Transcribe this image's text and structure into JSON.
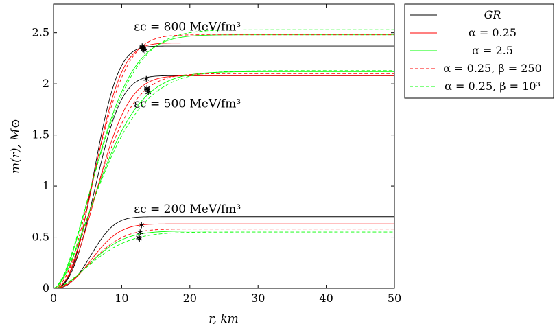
{
  "chart_data": {
    "type": "line",
    "title": "",
    "xlabel": "r, km",
    "ylabel": "m(r), M⊙",
    "xlim": [
      0,
      50
    ],
    "ylim": [
      0,
      2.78
    ],
    "xticks": [
      "0",
      "10",
      "20",
      "30",
      "40",
      "50"
    ],
    "yticks": [
      "0",
      "0.5",
      "1",
      "1.5",
      "2",
      "2.5"
    ],
    "legend_position": "outside-top-right",
    "legend": [
      {
        "key": "gr",
        "label": "GR",
        "color": "#000000",
        "dash": "solid"
      },
      {
        "key": "a025",
        "label": "α = 0.25",
        "color": "#ff0000",
        "dash": "solid"
      },
      {
        "key": "a25",
        "label": "α = 2.5",
        "color": "#00ff00",
        "dash": "solid"
      },
      {
        "key": "a025b250",
        "label": "α = 0.25, β = 250",
        "color": "#ff0000",
        "dash": "dashed"
      },
      {
        "key": "a025b1000",
        "label": "α = 0.25, β = 10³",
        "color": "#00ff00",
        "dash": "dashed"
      }
    ],
    "annotations": [
      {
        "label": "εc = 800 MeV/fm³",
        "x": 11.8,
        "y": 2.52
      },
      {
        "label": "εc = 500 MeV/fm³",
        "x": 11.8,
        "y": 1.77
      },
      {
        "label": "εc = 200 MeV/fm³",
        "x": 11.8,
        "y": 0.74
      }
    ],
    "curve_model": "m(r) = M_final * (1 - exp(-(r / r_scale)^shape)), sampled at r = 0..50 km",
    "groups": [
      {
        "density": "800 MeV/fm³",
        "series": [
          {
            "key": "gr",
            "M_final": 2.37,
            "r_scale": 7.0,
            "shape": 2.6,
            "star": [
              13.0,
              2.36
            ]
          },
          {
            "key": "a025",
            "M_final": 2.4,
            "r_scale": 7.3,
            "shape": 2.4,
            "star": [
              13.2,
              2.35
            ]
          },
          {
            "key": "a25",
            "M_final": 2.48,
            "r_scale": 8.0,
            "shape": 1.8,
            "star": [
              13.2,
              2.34
            ]
          },
          {
            "key": "a025b250",
            "M_final": 2.48,
            "r_scale": 7.6,
            "shape": 2.1,
            "star": [
              13.0,
              2.37
            ]
          },
          {
            "key": "a025b1000",
            "M_final": 2.53,
            "r_scale": 8.3,
            "shape": 1.7,
            "star": [
              13.4,
              2.33
            ]
          }
        ]
      },
      {
        "density": "500 MeV/fm³",
        "series": [
          {
            "key": "gr",
            "M_final": 2.08,
            "r_scale": 7.3,
            "shape": 2.5,
            "star": [
              13.6,
              2.05
            ]
          },
          {
            "key": "a025",
            "M_final": 2.08,
            "r_scale": 7.9,
            "shape": 2.2,
            "star": [
              13.7,
              1.96
            ]
          },
          {
            "key": "a25",
            "M_final": 2.12,
            "r_scale": 8.6,
            "shape": 1.7,
            "star": [
              13.8,
              1.94
            ]
          },
          {
            "key": "a025b250",
            "M_final": 2.1,
            "r_scale": 8.2,
            "shape": 1.9,
            "star": [
              13.7,
              1.95
            ]
          },
          {
            "key": "a025b1000",
            "M_final": 2.13,
            "r_scale": 8.9,
            "shape": 1.6,
            "star": [
              13.9,
              1.92
            ]
          }
        ]
      },
      {
        "density": "200 MeV/fm³",
        "series": [
          {
            "key": "gr",
            "M_final": 0.7,
            "r_scale": 6.6,
            "shape": 2.6,
            "star": null
          },
          {
            "key": "a025",
            "M_final": 0.63,
            "r_scale": 7.0,
            "shape": 2.3,
            "star": [
              12.9,
              0.62
            ]
          },
          {
            "key": "a25",
            "M_final": 0.56,
            "r_scale": 7.2,
            "shape": 1.9,
            "star": [
              12.6,
              0.49
            ]
          },
          {
            "key": "a025b250",
            "M_final": 0.58,
            "r_scale": 7.2,
            "shape": 2.0,
            "star": [
              12.7,
              0.55
            ]
          },
          {
            "key": "a025b1000",
            "M_final": 0.55,
            "r_scale": 7.6,
            "shape": 1.7,
            "star": [
              12.5,
              0.5
            ]
          }
        ]
      }
    ]
  }
}
